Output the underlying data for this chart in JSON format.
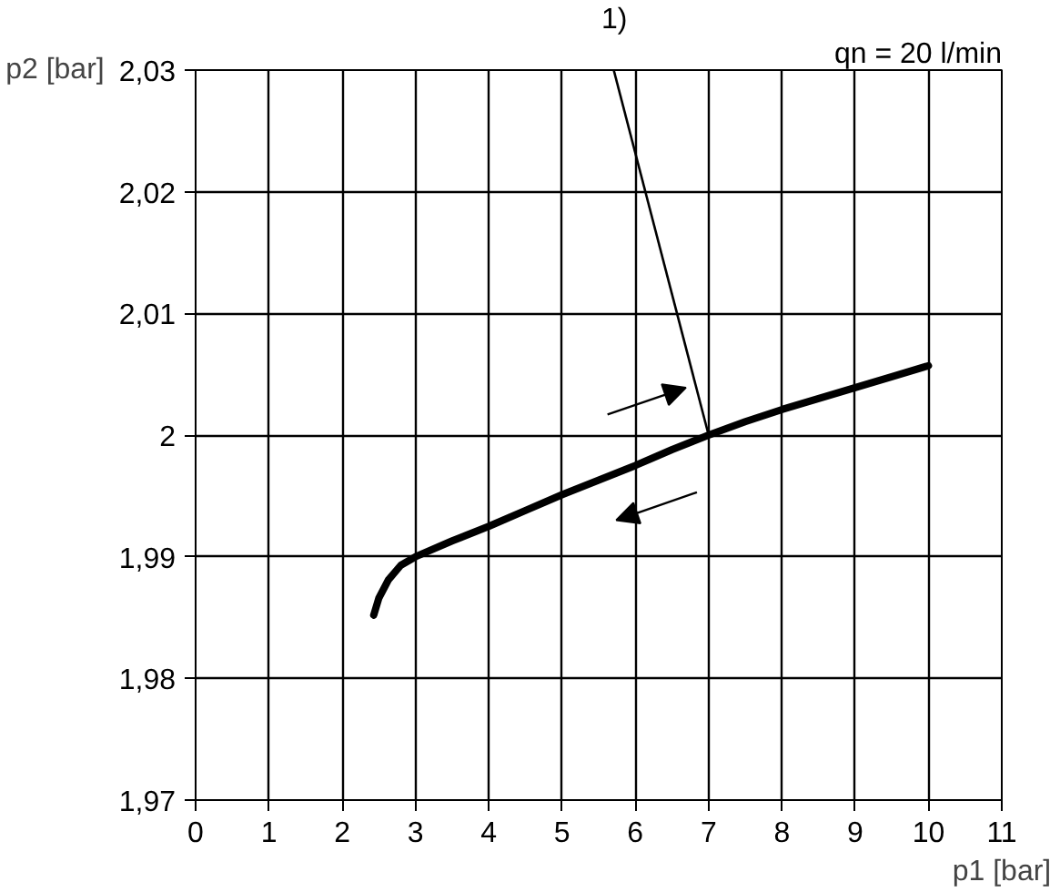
{
  "chart_data": {
    "type": "line",
    "xlabel": "p1 [bar]",
    "ylabel": "p2 [bar]",
    "x": [
      2.43,
      2.5,
      2.63,
      2.8,
      3,
      3.5,
      4,
      4.5,
      5,
      5.5,
      6,
      6.5,
      7,
      7.5,
      8,
      8.5,
      9,
      9.5,
      10
    ],
    "series": [
      {
        "color": "#000000",
        "values": [
          1.9852,
          1.9866,
          1.9881,
          1.9893,
          1.99,
          1.9913,
          1.9925,
          1.9938,
          1.9951,
          1.9963,
          1.9975,
          1.9988,
          2.0,
          2.0011,
          2.0021,
          2.003,
          2.0039,
          2.0048,
          2.0057
        ]
      }
    ],
    "xlim": [
      0,
      11
    ],
    "ylim": [
      1.97,
      2.03
    ],
    "xticks": [
      0,
      1,
      2,
      3,
      4,
      5,
      6,
      7,
      8,
      9,
      10,
      11
    ],
    "yticks": [
      {
        "value": 1.97,
        "label": "1,97"
      },
      {
        "value": 1.98,
        "label": "1,98"
      },
      {
        "value": 1.99,
        "label": "1,99"
      },
      2,
      {
        "value": 2.01,
        "label": "2,01"
      },
      {
        "value": 2.02,
        "label": "2,02"
      },
      {
        "value": 2.03,
        "label": "2,03"
      }
    ],
    "grid": true,
    "marker": "none",
    "line_style": "solid",
    "annotations": [
      "qn = 20 l/min",
      {
        "text": "1)",
        "x": 7,
        "y": 2.0
      }
    ]
  }
}
